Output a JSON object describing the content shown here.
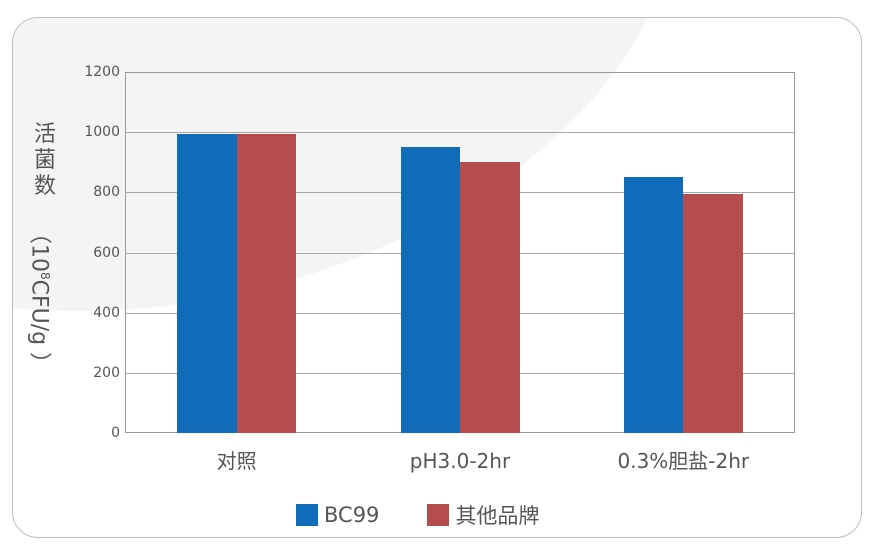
{
  "chart_data": {
    "type": "bar",
    "title": "",
    "xlabel": "",
    "ylabel": "活菌数（10^8CFU/g）",
    "ylabel_parts": {
      "main": "活菌数",
      "open": "（10",
      "sup": "8",
      "rest": "CFU/g ）"
    },
    "ylim": [
      0,
      1200
    ],
    "yticks": [
      "0",
      "200",
      "400",
      "600",
      "800",
      "1000",
      "1200"
    ],
    "grid": true,
    "legend_position": "bottom",
    "categories": [
      "对照",
      "pH3.0-2hr",
      "0.3%胆盐-2hr"
    ],
    "series": [
      {
        "name": "BC99",
        "color": "#106cb8",
        "values": [
          995,
          950,
          850
        ]
      },
      {
        "name": "其他品牌",
        "color": "#b54c4e",
        "values": [
          995,
          900,
          795
        ]
      }
    ]
  }
}
